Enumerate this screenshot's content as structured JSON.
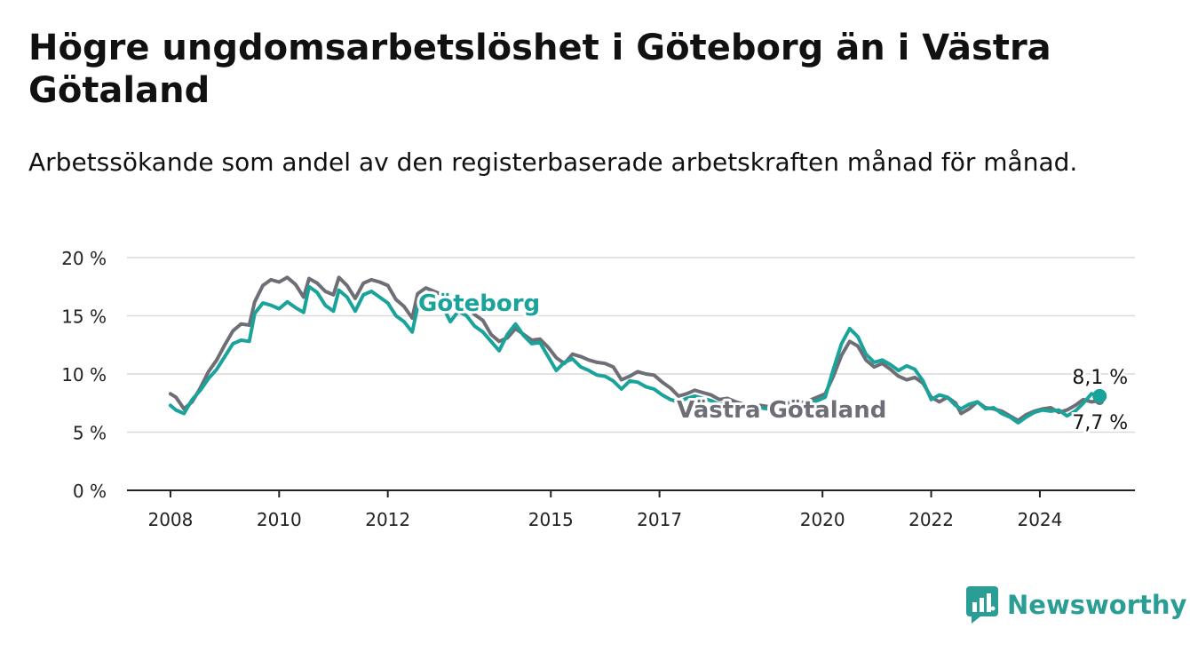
{
  "title": "Högre ungdomsarbetslöshet i Göteborg än i Västra Götaland",
  "subtitle": "Arbetssökande som andel av den registerbaserade arbetskraften månad för månad.",
  "brand": {
    "name": "Newsworthy",
    "icon": "newsworthy-logo-icon",
    "color": "#2a9d95"
  },
  "chart_data": {
    "type": "line",
    "ylim": [
      0,
      20
    ],
    "y_ticks": [
      0,
      5,
      10,
      15,
      20
    ],
    "y_tick_labels": [
      "0 %",
      "5 %",
      "10 %",
      "15 %",
      "20 %"
    ],
    "x_ticks": [
      2008,
      2010,
      2012,
      2015,
      2017,
      2020,
      2022,
      2024
    ],
    "x_tick_labels": [
      "2008",
      "2010",
      "2012",
      "2015",
      "2017",
      "2020",
      "2022",
      "2024"
    ],
    "xlim": [
      2007.2,
      2025.75
    ],
    "grid": true,
    "series": [
      {
        "name": "Västra Götaland",
        "color": "#6e6e76",
        "end_label": "7,7 %",
        "points": [
          [
            2008.0,
            8.3
          ],
          [
            2008.1,
            8.0
          ],
          [
            2008.25,
            7.0
          ],
          [
            2008.4,
            7.6
          ],
          [
            2008.55,
            8.8
          ],
          [
            2008.7,
            10.2
          ],
          [
            2008.85,
            11.2
          ],
          [
            2009.0,
            12.5
          ],
          [
            2009.15,
            13.7
          ],
          [
            2009.3,
            14.3
          ],
          [
            2009.45,
            14.2
          ],
          [
            2009.55,
            16.2
          ],
          [
            2009.7,
            17.6
          ],
          [
            2009.85,
            18.1
          ],
          [
            2010.0,
            17.9
          ],
          [
            2010.15,
            18.3
          ],
          [
            2010.3,
            17.7
          ],
          [
            2010.45,
            16.6
          ],
          [
            2010.55,
            18.2
          ],
          [
            2010.7,
            17.8
          ],
          [
            2010.85,
            17.1
          ],
          [
            2011.0,
            16.8
          ],
          [
            2011.1,
            18.3
          ],
          [
            2011.25,
            17.6
          ],
          [
            2011.4,
            16.5
          ],
          [
            2011.55,
            17.8
          ],
          [
            2011.7,
            18.1
          ],
          [
            2011.85,
            17.9
          ],
          [
            2012.0,
            17.6
          ],
          [
            2012.15,
            16.4
          ],
          [
            2012.3,
            15.8
          ],
          [
            2012.45,
            14.8
          ],
          [
            2012.55,
            16.9
          ],
          [
            2012.7,
            17.4
          ],
          [
            2012.85,
            17.1
          ],
          [
            2013.0,
            16.8
          ],
          [
            2013.15,
            15.6
          ],
          [
            2013.3,
            16.3
          ],
          [
            2013.45,
            15.8
          ],
          [
            2013.6,
            15.1
          ],
          [
            2013.75,
            14.6
          ],
          [
            2013.9,
            13.4
          ],
          [
            2014.05,
            12.8
          ],
          [
            2014.2,
            13.1
          ],
          [
            2014.35,
            13.9
          ],
          [
            2014.5,
            13.4
          ],
          [
            2014.65,
            12.9
          ],
          [
            2014.8,
            13.0
          ],
          [
            2014.95,
            12.3
          ],
          [
            2015.1,
            11.4
          ],
          [
            2015.25,
            10.9
          ],
          [
            2015.4,
            11.7
          ],
          [
            2015.55,
            11.5
          ],
          [
            2015.7,
            11.2
          ],
          [
            2015.85,
            11.0
          ],
          [
            2016.0,
            10.9
          ],
          [
            2016.15,
            10.6
          ],
          [
            2016.3,
            9.5
          ],
          [
            2016.45,
            9.8
          ],
          [
            2016.6,
            10.2
          ],
          [
            2016.75,
            10.0
          ],
          [
            2016.9,
            9.9
          ],
          [
            2017.05,
            9.3
          ],
          [
            2017.2,
            8.8
          ],
          [
            2017.35,
            8.1
          ],
          [
            2017.5,
            8.3
          ],
          [
            2017.65,
            8.6
          ],
          [
            2017.8,
            8.4
          ],
          [
            2017.95,
            8.2
          ],
          [
            2018.1,
            7.8
          ],
          [
            2018.25,
            7.9
          ],
          [
            2018.4,
            7.6
          ],
          [
            2018.55,
            7.4
          ],
          [
            2018.7,
            7.1
          ],
          [
            2018.85,
            7.3
          ],
          [
            2019.0,
            7.2
          ],
          [
            2019.15,
            7.5
          ],
          [
            2019.3,
            7.4
          ],
          [
            2019.45,
            7.6
          ],
          [
            2019.6,
            7.5
          ],
          [
            2019.75,
            7.7
          ],
          [
            2019.9,
            8.0
          ],
          [
            2020.05,
            8.3
          ],
          [
            2020.2,
            9.8
          ],
          [
            2020.35,
            11.6
          ],
          [
            2020.5,
            12.8
          ],
          [
            2020.65,
            12.4
          ],
          [
            2020.8,
            11.2
          ],
          [
            2020.95,
            10.6
          ],
          [
            2021.1,
            10.9
          ],
          [
            2021.25,
            10.4
          ],
          [
            2021.4,
            9.8
          ],
          [
            2021.55,
            9.5
          ],
          [
            2021.7,
            9.7
          ],
          [
            2021.85,
            9.2
          ],
          [
            2022.0,
            8.0
          ],
          [
            2022.15,
            7.6
          ],
          [
            2022.3,
            8.0
          ],
          [
            2022.45,
            7.5
          ],
          [
            2022.55,
            6.6
          ],
          [
            2022.7,
            7.0
          ],
          [
            2022.85,
            7.6
          ],
          [
            2023.0,
            7.1
          ],
          [
            2023.15,
            7.0
          ],
          [
            2023.3,
            6.8
          ],
          [
            2023.45,
            6.4
          ],
          [
            2023.6,
            6.0
          ],
          [
            2023.75,
            6.5
          ],
          [
            2023.9,
            6.8
          ],
          [
            2024.05,
            7.0
          ],
          [
            2024.2,
            7.1
          ],
          [
            2024.35,
            6.7
          ],
          [
            2024.5,
            6.9
          ],
          [
            2024.65,
            7.3
          ],
          [
            2024.8,
            7.8
          ],
          [
            2024.95,
            7.6
          ],
          [
            2025.1,
            7.7
          ]
        ]
      },
      {
        "name": "Göteborg",
        "color": "#1aa39a",
        "end_label": "8,1 %",
        "points": [
          [
            2008.0,
            7.3
          ],
          [
            2008.1,
            6.9
          ],
          [
            2008.25,
            6.6
          ],
          [
            2008.4,
            7.8
          ],
          [
            2008.55,
            8.6
          ],
          [
            2008.7,
            9.6
          ],
          [
            2008.85,
            10.4
          ],
          [
            2009.0,
            11.5
          ],
          [
            2009.15,
            12.6
          ],
          [
            2009.3,
            12.9
          ],
          [
            2009.45,
            12.8
          ],
          [
            2009.55,
            15.2
          ],
          [
            2009.7,
            16.1
          ],
          [
            2009.85,
            15.9
          ],
          [
            2010.0,
            15.6
          ],
          [
            2010.15,
            16.2
          ],
          [
            2010.3,
            15.7
          ],
          [
            2010.45,
            15.3
          ],
          [
            2010.55,
            17.5
          ],
          [
            2010.7,
            17.0
          ],
          [
            2010.85,
            15.9
          ],
          [
            2011.0,
            15.4
          ],
          [
            2011.1,
            17.2
          ],
          [
            2011.25,
            16.6
          ],
          [
            2011.4,
            15.4
          ],
          [
            2011.55,
            16.8
          ],
          [
            2011.7,
            17.1
          ],
          [
            2011.85,
            16.6
          ],
          [
            2012.0,
            16.1
          ],
          [
            2012.15,
            15.0
          ],
          [
            2012.3,
            14.5
          ],
          [
            2012.45,
            13.6
          ],
          [
            2012.55,
            15.8
          ],
          [
            2012.7,
            16.8
          ],
          [
            2012.85,
            16.4
          ],
          [
            2013.0,
            15.9
          ],
          [
            2013.15,
            14.5
          ],
          [
            2013.3,
            15.4
          ],
          [
            2013.45,
            15.0
          ],
          [
            2013.6,
            14.1
          ],
          [
            2013.75,
            13.6
          ],
          [
            2013.9,
            12.8
          ],
          [
            2014.05,
            12.0
          ],
          [
            2014.2,
            13.4
          ],
          [
            2014.35,
            14.3
          ],
          [
            2014.5,
            13.3
          ],
          [
            2014.65,
            12.6
          ],
          [
            2014.8,
            12.7
          ],
          [
            2014.95,
            11.5
          ],
          [
            2015.1,
            10.3
          ],
          [
            2015.25,
            11.0
          ],
          [
            2015.4,
            11.3
          ],
          [
            2015.55,
            10.6
          ],
          [
            2015.7,
            10.3
          ],
          [
            2015.85,
            9.9
          ],
          [
            2016.0,
            9.8
          ],
          [
            2016.15,
            9.4
          ],
          [
            2016.3,
            8.7
          ],
          [
            2016.45,
            9.4
          ],
          [
            2016.6,
            9.3
          ],
          [
            2016.75,
            8.9
          ],
          [
            2016.9,
            8.7
          ],
          [
            2017.05,
            8.2
          ],
          [
            2017.2,
            7.8
          ],
          [
            2017.35,
            7.6
          ],
          [
            2017.5,
            7.9
          ],
          [
            2017.65,
            8.1
          ],
          [
            2017.8,
            7.9
          ],
          [
            2017.95,
            7.7
          ],
          [
            2018.1,
            7.4
          ],
          [
            2018.25,
            7.5
          ],
          [
            2018.4,
            7.2
          ],
          [
            2018.55,
            7.0
          ],
          [
            2018.7,
            6.9
          ],
          [
            2018.85,
            7.1
          ],
          [
            2019.0,
            7.0
          ],
          [
            2019.15,
            7.3
          ],
          [
            2019.3,
            7.2
          ],
          [
            2019.45,
            7.4
          ],
          [
            2019.6,
            7.3
          ],
          [
            2019.75,
            7.5
          ],
          [
            2019.9,
            7.7
          ],
          [
            2020.05,
            8.0
          ],
          [
            2020.2,
            10.4
          ],
          [
            2020.35,
            12.6
          ],
          [
            2020.5,
            13.9
          ],
          [
            2020.65,
            13.2
          ],
          [
            2020.8,
            11.7
          ],
          [
            2020.95,
            11.0
          ],
          [
            2021.1,
            11.2
          ],
          [
            2021.25,
            10.8
          ],
          [
            2021.4,
            10.3
          ],
          [
            2021.55,
            10.7
          ],
          [
            2021.7,
            10.4
          ],
          [
            2021.85,
            9.4
          ],
          [
            2022.0,
            7.8
          ],
          [
            2022.15,
            8.2
          ],
          [
            2022.3,
            8.0
          ],
          [
            2022.45,
            7.3
          ],
          [
            2022.55,
            7.0
          ],
          [
            2022.7,
            7.4
          ],
          [
            2022.85,
            7.6
          ],
          [
            2023.0,
            7.0
          ],
          [
            2023.15,
            7.1
          ],
          [
            2023.3,
            6.6
          ],
          [
            2023.45,
            6.3
          ],
          [
            2023.6,
            5.8
          ],
          [
            2023.75,
            6.3
          ],
          [
            2023.9,
            6.7
          ],
          [
            2024.05,
            6.9
          ],
          [
            2024.2,
            6.8
          ],
          [
            2024.35,
            6.9
          ],
          [
            2024.5,
            6.4
          ],
          [
            2024.65,
            6.8
          ],
          [
            2024.8,
            7.5
          ],
          [
            2024.95,
            8.3
          ],
          [
            2025.1,
            8.1
          ]
        ]
      }
    ]
  }
}
